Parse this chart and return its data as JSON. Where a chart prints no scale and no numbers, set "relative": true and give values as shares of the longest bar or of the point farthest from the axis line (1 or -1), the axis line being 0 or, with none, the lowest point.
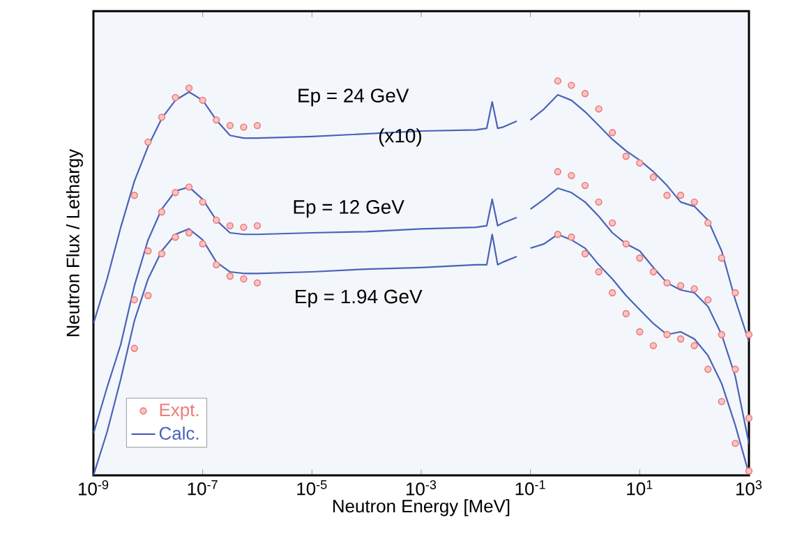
{
  "chart_data": {
    "type": "line",
    "relative": true,
    "log": "x",
    "xlabel": "Neutron Energy  [MeV]",
    "ylabel": "Neutron Flux / Lethargy",
    "xlim": [
      1e-09,
      1000
    ],
    "xticks": [
      {
        "value": 1e-09,
        "label": "10$^{-9}$"
      },
      {
        "value": 1e-07,
        "label": "10$^{-7}$"
      },
      {
        "value": 1e-05,
        "label": "10$^{-5}$"
      },
      {
        "value": 0.001,
        "label": "10$^{-3}$"
      },
      {
        "value": 0.1,
        "label": "10$^{-1}$"
      },
      {
        "value": 10,
        "label": "10$^{1}$"
      },
      {
        "value": 1000,
        "label": "10$^{3}$"
      }
    ],
    "legend": "bottom left",
    "grid": false,
    "annotations": [
      "Ep = 24 GeV",
      "(x10)",
      "Ep = 12 GeV",
      "Ep = 1.94 GeV"
    ],
    "series": [
      {
        "name": "Expt.",
        "type": "scatter",
        "marker": "circle",
        "color": "#ef7b7b",
        "x": [
          5.623e-09,
          1e-08,
          1.778e-08,
          3.162e-08,
          5.623e-08,
          1e-07,
          1.778e-07,
          3.162e-07,
          5.623e-07,
          1e-06,
          0.1,
          0.3162,
          0.5623,
          1,
          1.778,
          3.162,
          5.623,
          10,
          17.78,
          31.62,
          56.23,
          100,
          177.8,
          316.2,
          562.3,
          1000
        ],
        "values": [
          0.71,
          0.845,
          0.908,
          0.958,
          0.982,
          0.951,
          0.901,
          0.887,
          0.883,
          0.887,
          null,
          1.0,
          0.989,
          0.968,
          0.929,
          0.869,
          0.809,
          0.792,
          0.756,
          0.71,
          0.71,
          0.693,
          0.64,
          0.551,
          0.463,
          0.357
        ]
      },
      {
        "name": "Calc.",
        "color": "#4a62b8",
        "x": [
          1e-09,
          1.778e-09,
          3.162e-09,
          5.623e-09,
          1e-08,
          1.778e-08,
          3.162e-08,
          5.623e-08,
          1e-07,
          1.778e-07,
          3.162e-07,
          5.623e-07,
          1e-06,
          1e-05,
          0.0001,
          0.001,
          0.01,
          0.01585,
          0.01995,
          0.02512,
          0.03162,
          0.05623,
          0.07943,
          0.1,
          0.1778,
          0.3162,
          0.5623,
          1,
          1.778,
          3.162,
          5.623,
          10,
          17.78,
          31.62,
          56.23,
          100,
          177.8,
          316.2,
          562.3,
          1000
        ],
        "values": [
          0.385,
          0.498,
          0.629,
          0.746,
          0.834,
          0.905,
          0.951,
          0.972,
          0.951,
          0.901,
          0.862,
          0.855,
          0.855,
          0.859,
          0.866,
          0.873,
          0.876,
          0.88,
          0.947,
          0.88,
          0.883,
          0.898,
          null,
          0.901,
          0.929,
          0.965,
          0.951,
          0.922,
          0.887,
          0.852,
          0.823,
          0.799,
          0.77,
          0.735,
          0.693,
          0.682,
          0.647,
          0.569,
          0.445,
          0.339
        ]
      },
      {
        "type": "scatter",
        "marker": "circle",
        "color": "#ef7b7b",
        "x": [
          5.623e-09,
          1e-08,
          1.778e-08,
          3.162e-08,
          5.623e-08,
          1e-07,
          1.778e-07,
          3.162e-07,
          5.623e-07,
          1e-06,
          0.1,
          0.3162,
          0.5623,
          1,
          1.778,
          3.162,
          5.623,
          10,
          17.78,
          31.62,
          56.23,
          100,
          177.8,
          316.2,
          562.3,
          1000
        ],
        "values": [
          0.445,
          0.569,
          0.668,
          0.717,
          0.731,
          0.693,
          0.647,
          0.633,
          0.629,
          0.633,
          null,
          0.77,
          0.76,
          0.735,
          0.693,
          0.64,
          0.587,
          0.551,
          0.516,
          0.488,
          0.481,
          0.473,
          0.445,
          0.357,
          0.269,
          0.145
        ]
      },
      {
        "color": "#4a62b8",
        "x": [
          1e-09,
          1.778e-09,
          3.162e-09,
          5.623e-09,
          1e-08,
          1.778e-08,
          3.162e-08,
          5.623e-08,
          1e-07,
          1.778e-07,
          3.162e-07,
          5.623e-07,
          1e-06,
          1e-05,
          0.0001,
          0.001,
          0.01,
          0.01585,
          0.01995,
          0.02512,
          0.03162,
          0.05623,
          0.07943,
          0.1,
          0.1778,
          0.3162,
          0.5623,
          1,
          1.778,
          3.162,
          5.623,
          10,
          17.78,
          31.62,
          56.23,
          100,
          177.8,
          316.2,
          562.3,
          1000
        ],
        "values": [
          0.106,
          0.223,
          0.332,
          0.481,
          0.597,
          0.675,
          0.721,
          0.731,
          0.7,
          0.647,
          0.615,
          0.611,
          0.611,
          0.615,
          0.618,
          0.625,
          0.629,
          0.633,
          0.7,
          0.633,
          0.64,
          0.654,
          null,
          0.675,
          0.7,
          0.728,
          0.717,
          0.693,
          0.657,
          0.615,
          0.587,
          0.569,
          0.527,
          0.488,
          0.47,
          0.463,
          0.428,
          0.357,
          0.251,
          0.081
        ]
      },
      {
        "type": "scatter",
        "marker": "circle",
        "color": "#ef7b7b",
        "x": [
          5.623e-09,
          1e-08,
          1.778e-08,
          3.162e-08,
          5.623e-08,
          1e-07,
          1.778e-07,
          3.162e-07,
          5.623e-07,
          1e-06,
          0.1,
          0.3162,
          0.5623,
          1,
          1.778,
          3.162,
          5.623,
          10,
          17.78,
          31.62,
          56.23,
          100,
          177.8,
          316.2,
          562.3,
          1000
        ],
        "values": [
          0.322,
          0.456,
          0.562,
          0.604,
          0.615,
          0.587,
          0.534,
          0.505,
          0.498,
          0.488,
          null,
          0.611,
          0.604,
          0.562,
          0.516,
          0.463,
          0.41,
          0.364,
          0.329,
          0.357,
          0.346,
          0.329,
          0.269,
          0.187,
          0.081,
          0.011
        ]
      },
      {
        "color": "#4a62b8",
        "x": [
          1e-09,
          1.778e-09,
          3.162e-09,
          5.623e-09,
          1e-08,
          1.778e-08,
          3.162e-08,
          5.623e-08,
          1e-07,
          1.778e-07,
          3.162e-07,
          5.623e-07,
          1e-06,
          1e-05,
          0.0001,
          0.001,
          0.01,
          0.01585,
          0.01995,
          0.02512,
          0.03162,
          0.05623,
          0.07943,
          0.1,
          0.1778,
          0.3162,
          0.5623,
          1,
          1.778,
          3.162,
          5.623,
          10,
          17.78,
          31.62,
          56.23,
          100,
          177.8,
          316.2,
          562.3,
          1000
        ],
        "values": [
          0.0,
          0.11,
          0.244,
          0.392,
          0.498,
          0.569,
          0.611,
          0.625,
          0.597,
          0.541,
          0.516,
          0.512,
          0.512,
          0.516,
          0.523,
          0.527,
          0.534,
          0.534,
          0.611,
          0.534,
          0.541,
          0.555,
          null,
          0.576,
          0.587,
          0.611,
          0.597,
          0.576,
          0.534,
          0.498,
          0.456,
          0.42,
          0.385,
          0.357,
          0.364,
          0.346,
          0.304,
          0.233,
          0.127,
          0.004
        ]
      }
    ]
  }
}
